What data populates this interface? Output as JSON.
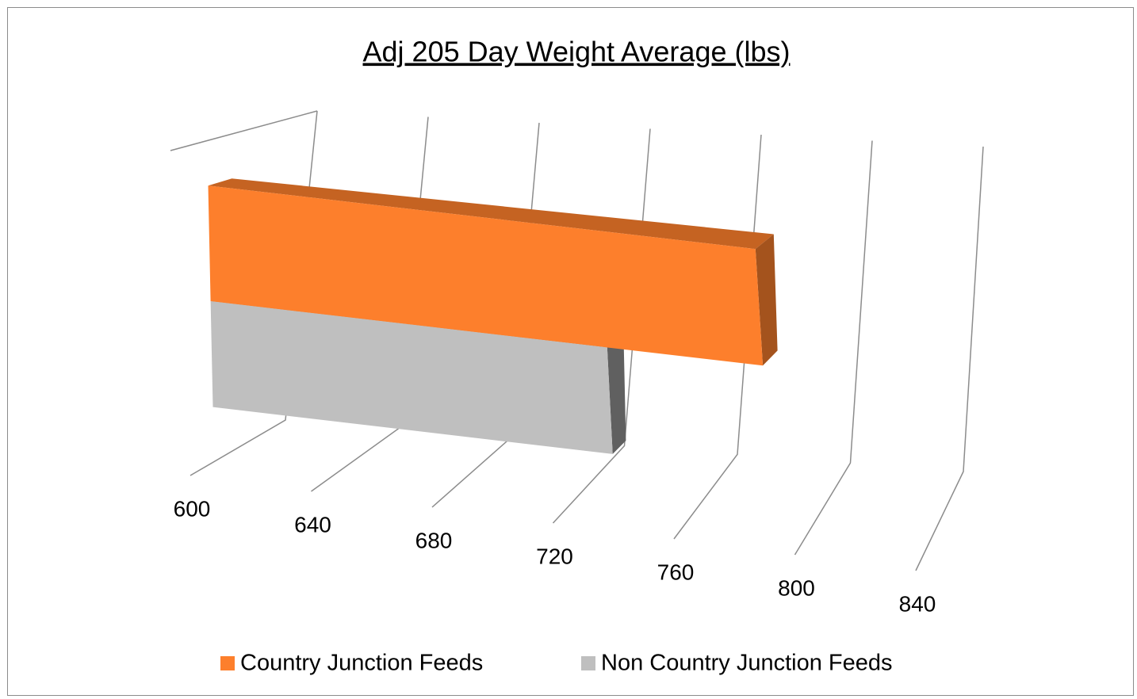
{
  "chart_data": {
    "type": "bar3d",
    "orientation": "horizontal",
    "title": "Adj 205 Day Weight Average (lbs)",
    "categories": [
      null
    ],
    "series": [
      {
        "name": "Country Junction Feeds",
        "color": "#fd7f2c",
        "values": [
          788
        ]
      },
      {
        "name": "Non Country Junction Feeds",
        "color": "#bfbfbf",
        "values": [
          735
        ]
      }
    ],
    "xlim": [
      600,
      840
    ],
    "xticks": [
      600,
      640,
      680,
      720,
      760,
      800,
      840
    ],
    "grid": true,
    "legend": "bottom"
  }
}
